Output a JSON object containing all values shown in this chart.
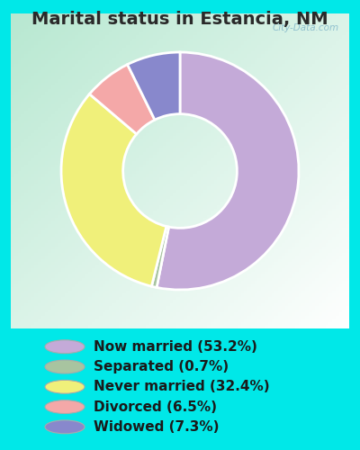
{
  "title": "Marital status in Estancia, NM",
  "slices": [
    53.2,
    0.7,
    32.4,
    6.5,
    7.3
  ],
  "labels": [
    "Now married (53.2%)",
    "Separated (0.7%)",
    "Never married (32.4%)",
    "Divorced (6.5%)",
    "Widowed (7.3%)"
  ],
  "colors": [
    "#c4aad8",
    "#a8c4a0",
    "#f0f07a",
    "#f4a8a8",
    "#8888cc"
  ],
  "startangle": 90,
  "outer_background": "#00e8e8",
  "chart_bg_color": "#d0e8d8",
  "title_fontsize": 14,
  "legend_fontsize": 11,
  "watermark": "City-Data.com",
  "donut_width": 0.52,
  "title_color": "#2a2a2a"
}
